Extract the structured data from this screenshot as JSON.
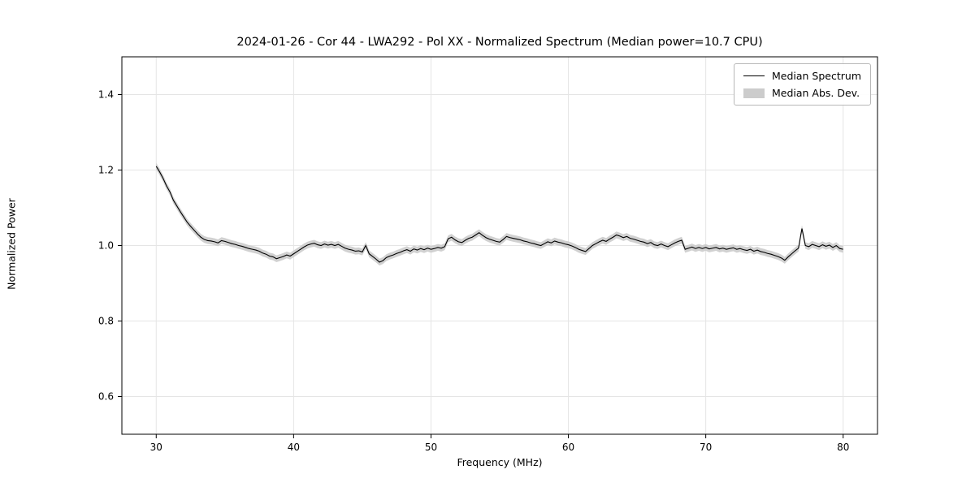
{
  "figure": {
    "background_color": "#ffffff"
  },
  "chart_data": {
    "type": "line",
    "title": "2024-01-26 - Cor 44 - LWA292 - Pol XX - Normalized Spectrum (Median power=10.7 CPU)",
    "xlabel": "Frequency (MHz)",
    "ylabel": "Normalized Power",
    "xlim": [
      27.5,
      82.5
    ],
    "ylim": [
      0.5,
      1.5
    ],
    "xticks": [
      30,
      40,
      50,
      60,
      70,
      80
    ],
    "yticks": [
      0.6,
      0.8,
      1.0,
      1.2,
      1.4
    ],
    "grid": true,
    "grid_color": "#e5e5e5",
    "line_color": "#000000",
    "band_color": "#cccccc",
    "legend": {
      "position": "upper right",
      "entries": [
        {
          "label": "Median Spectrum",
          "type": "line",
          "color": "#000000"
        },
        {
          "label": "Median Abs. Dev.",
          "type": "band",
          "color": "#cccccc"
        }
      ]
    },
    "band": {
      "name": "Median Abs. Dev.",
      "half_width": 0.009
    },
    "series": [
      {
        "name": "Median Spectrum",
        "x_mhz": {
          "start": 30.0,
          "step": 0.25,
          "count": 201
        },
        "y": [
          1.21,
          1.195,
          1.178,
          1.158,
          1.142,
          1.12,
          1.105,
          1.09,
          1.076,
          1.062,
          1.051,
          1.041,
          1.031,
          1.022,
          1.016,
          1.013,
          1.012,
          1.01,
          1.007,
          1.013,
          1.011,
          1.008,
          1.005,
          1.003,
          1.0,
          0.998,
          0.995,
          0.992,
          0.99,
          0.988,
          0.985,
          0.98,
          0.977,
          0.972,
          0.97,
          0.965,
          0.968,
          0.971,
          0.975,
          0.972,
          0.978,
          0.984,
          0.99,
          0.996,
          1.001,
          1.004,
          1.006,
          1.002,
          1.0,
          1.004,
          1.001,
          1.003,
          1.0,
          1.003,
          0.998,
          0.993,
          0.99,
          0.988,
          0.985,
          0.986,
          0.983,
          1.0,
          0.978,
          0.971,
          0.964,
          0.956,
          0.96,
          0.968,
          0.972,
          0.975,
          0.979,
          0.982,
          0.986,
          0.989,
          0.985,
          0.991,
          0.988,
          0.992,
          0.989,
          0.993,
          0.99,
          0.992,
          0.995,
          0.993,
          0.997,
          1.018,
          1.022,
          1.015,
          1.01,
          1.008,
          1.014,
          1.019,
          1.022,
          1.028,
          1.034,
          1.027,
          1.021,
          1.017,
          1.014,
          1.011,
          1.009,
          1.016,
          1.024,
          1.021,
          1.019,
          1.017,
          1.015,
          1.012,
          1.01,
          1.007,
          1.005,
          1.002,
          1.0,
          1.005,
          1.01,
          1.007,
          1.012,
          1.009,
          1.007,
          1.004,
          1.002,
          0.999,
          0.995,
          0.99,
          0.987,
          0.984,
          0.992,
          1.0,
          1.005,
          1.01,
          1.014,
          1.011,
          1.017,
          1.022,
          1.028,
          1.025,
          1.021,
          1.024,
          1.019,
          1.017,
          1.014,
          1.011,
          1.009,
          1.005,
          1.008,
          1.002,
          1.0,
          1.004,
          1.0,
          0.997,
          1.002,
          1.007,
          1.011,
          1.014,
          0.99,
          0.993,
          0.996,
          0.992,
          0.995,
          0.992,
          0.995,
          0.991,
          0.993,
          0.995,
          0.991,
          0.993,
          0.99,
          0.992,
          0.994,
          0.99,
          0.992,
          0.989,
          0.987,
          0.99,
          0.985,
          0.988,
          0.984,
          0.982,
          0.979,
          0.977,
          0.974,
          0.971,
          0.967,
          0.961,
          0.97,
          0.978,
          0.986,
          0.993,
          1.045,
          1.0,
          0.997,
          1.003,
          1.0,
          0.997,
          1.002,
          0.998,
          1.001,
          0.995,
          1.0,
          0.992,
          0.99
        ]
      }
    ]
  }
}
